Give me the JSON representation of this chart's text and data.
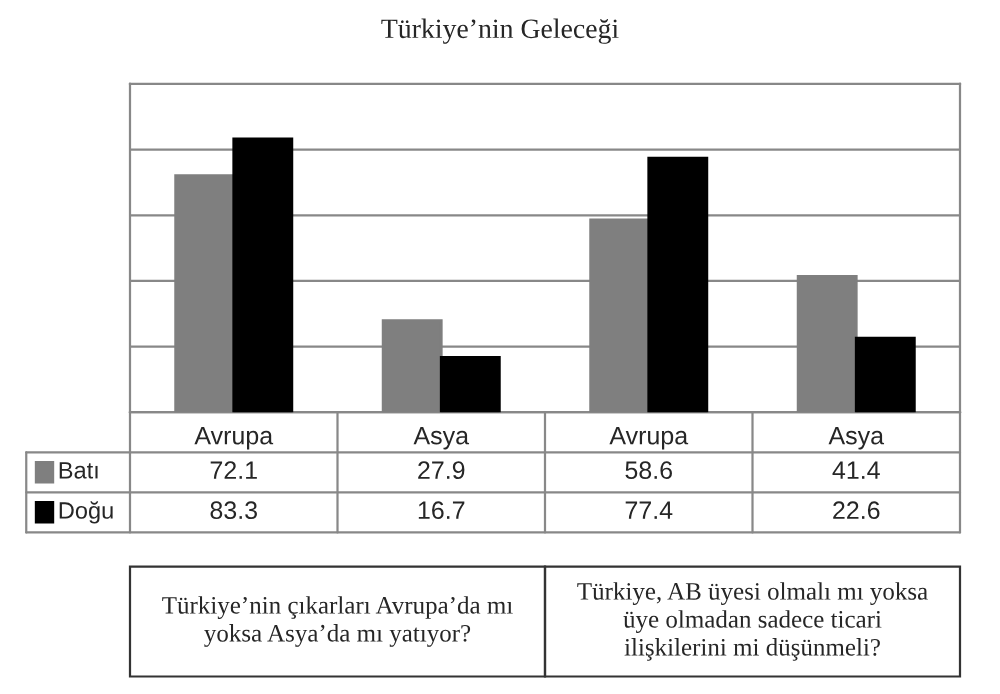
{
  "chart_data": {
    "type": "bar",
    "title": "Türkiye’nin Geleceği",
    "categories": [
      "Avrupa",
      "Asya",
      "Avrupa",
      "Asya"
    ],
    "series": [
      {
        "name": "Batı",
        "color": "#7f7f7f",
        "values": [
          72.1,
          27.9,
          58.6,
          41.4
        ]
      },
      {
        "name": "Doğu",
        "color": "#000000",
        "values": [
          83.3,
          16.7,
          77.4,
          22.6
        ]
      }
    ],
    "ylim": [
      0,
      100
    ],
    "yticks": [
      {
        "value": 0,
        "label": null
      },
      {
        "value": 20,
        "label": null
      },
      {
        "value": 40,
        "label": null
      },
      {
        "value": 60,
        "label": null
      },
      {
        "value": 80,
        "label": null
      },
      {
        "value": 100,
        "label": null
      }
    ],
    "grid": "y",
    "legend": "bottom left",
    "tick_labels": "x",
    "data_labels": true,
    "annotations": [
      "Türkiye’nin çıkarları Avrupa’da mı\nyoksa Asya’da mı yatıyor?",
      "Türkiye, AB üyesi olmalı mı yoksa\nüye olmadan sadece ticari\nilişkilerini mi düşünmeli?"
    ]
  }
}
